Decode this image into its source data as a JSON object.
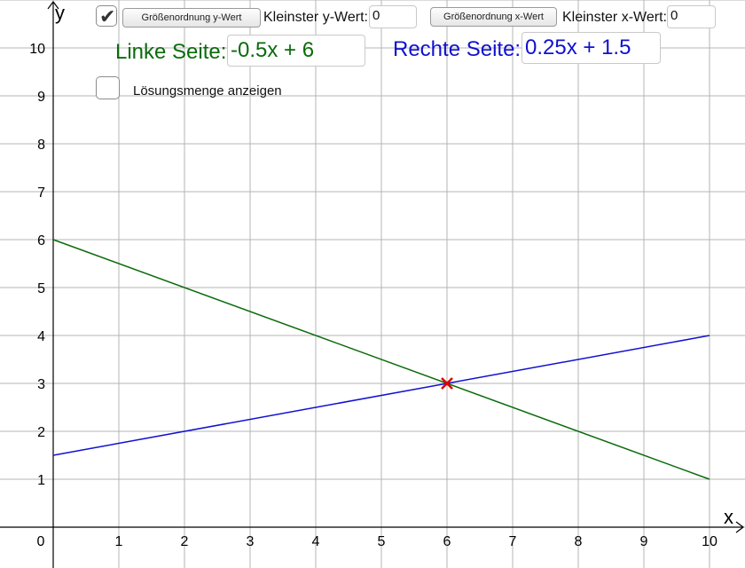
{
  "controls": {
    "checkbox_range_checked": true,
    "btn_y_magnitude": "Größenordnung y-Wert",
    "label_min_y": "Kleinster y-Wert:",
    "min_y_value": "0",
    "btn_x_magnitude": "Größenordnung x-Wert",
    "label_min_x": "Kleinster x-Wert:",
    "min_x_value": "0",
    "left_label": "Linke Seite:",
    "left_expr": "-0.5x + 6",
    "right_label": "Rechte Seite:",
    "right_expr": "0.25x + 1.5",
    "solution_checkbox_checked": false,
    "solution_label": "Lösungsmenge anzeigen"
  },
  "colors": {
    "left": "#0b6b0b",
    "right": "#1010d0",
    "intersection": "#e00000",
    "grid": "#b4b4b4",
    "axis": "#000000"
  },
  "chart_data": {
    "type": "line",
    "xlabel": "x",
    "ylabel": "y",
    "xlim": [
      0,
      10
    ],
    "ylim": [
      0,
      10
    ],
    "x_ticks": [
      0,
      1,
      2,
      3,
      4,
      5,
      6,
      7,
      8,
      9,
      10
    ],
    "y_ticks": [
      1,
      2,
      3,
      4,
      5,
      6,
      7,
      8,
      9,
      10
    ],
    "grid": true,
    "series": [
      {
        "name": "Linke Seite",
        "color_key": "left",
        "x": [
          0,
          10
        ],
        "y": [
          6,
          1
        ]
      },
      {
        "name": "Rechte Seite",
        "color_key": "right",
        "x": [
          0,
          10
        ],
        "y": [
          1.5,
          4
        ]
      }
    ],
    "intersection": {
      "x": 6,
      "y": 3
    }
  }
}
